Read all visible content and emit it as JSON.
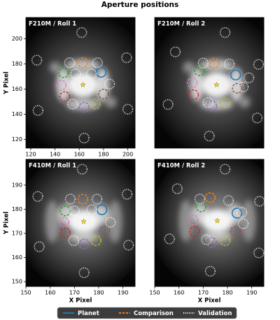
{
  "title": "Aperture positions",
  "chart_data": [
    {
      "type": "aperture-map",
      "panel_title": "F210M / Roll 1",
      "xlim": [
        116,
        206
      ],
      "ylim": [
        113,
        217
      ],
      "xticks": [
        120,
        140,
        160,
        180,
        200
      ],
      "yticks": [
        120,
        140,
        160,
        180,
        200
      ],
      "ylabel": "Y Pixel",
      "aperture_radius": 4,
      "star": {
        "x": 163,
        "y": 163.4
      },
      "series": [
        {
          "name": "Planet",
          "color": "#1f77b4",
          "style": "solid",
          "x": [
            178
          ],
          "y": [
            173.4
          ]
        },
        {
          "name": "Comparison",
          "color": "#ff7f0e",
          "style": "dashed",
          "colors": [
            "#ff7f0e",
            "#2ca02c",
            "#e377c2",
            "#d62728",
            "#9467bd",
            "#bcbd22",
            "#8c564b"
          ],
          "x": [
            163,
            147,
            145,
            148,
            164,
            173,
            180
          ],
          "y": [
            181,
            173,
            163,
            154,
            145.5,
            148,
            156
          ]
        },
        {
          "name": "Validation",
          "color": "#ffffff",
          "style": "dotted",
          "x": [
            162,
            125,
            199,
            126,
            200,
            164,
            152,
            175,
            157,
            170,
            185,
            154.5
          ],
          "y": [
            205,
            183,
            185,
            143,
            144,
            121,
            181,
            181,
            172,
            172,
            164,
            148
          ]
        }
      ]
    },
    {
      "type": "aperture-map",
      "panel_title": "F210M / Roll 2",
      "xlim": [
        116,
        206
      ],
      "ylim": [
        113,
        217
      ],
      "aperture_radius": 4,
      "star": {
        "x": 167,
        "y": 163.4
      },
      "series": [
        {
          "name": "Planet",
          "color": "#1f77b4",
          "style": "solid",
          "x": [
            182.7
          ],
          "y": [
            171.2
          ]
        },
        {
          "name": "Comparison",
          "color": "#ff7f0e",
          "style": "dashed",
          "colors": [
            "#ff7f0e",
            "#2ca02c",
            "#e377c2",
            "#d62728",
            "#9467bd",
            "#bcbd22",
            "#8c564b"
          ],
          "x": [
            165,
            153,
            147,
            148,
            163,
            174,
            184
          ],
          "y": [
            180.7,
            174.5,
            165,
            155.5,
            146.6,
            149,
            160.6
          ]
        },
        {
          "name": "Validation",
          "color": "#ffffff",
          "style": "dotted",
          "x": [
            174,
            133,
            201.6,
            127,
            200.5,
            161,
            156,
            177.5,
            193.6,
            160,
            189
          ],
          "y": [
            205,
            189.6,
            179.6,
            147.7,
            137,
            122.6,
            180.7,
            180,
            169,
            149.4,
            161.7
          ]
        }
      ]
    },
    {
      "type": "aperture-map",
      "panel_title": "F410M / Roll 1",
      "xlim": [
        150,
        195
      ],
      "ylim": [
        148,
        200.7
      ],
      "xticks": [
        150,
        160,
        170,
        180,
        190
      ],
      "yticks": [
        150,
        160,
        170,
        180,
        190
      ],
      "xlabel": "X Pixel",
      "ylabel": "Y Pixel",
      "aperture_radius": 2,
      "star": {
        "x": 173.8,
        "y": 174.9
      },
      "series": [
        {
          "name": "Planet",
          "color": "#1f77b4",
          "style": "solid",
          "x": [
            181.3
          ],
          "y": [
            179.8
          ]
        },
        {
          "name": "Comparison",
          "color": "#ff7f0e",
          "style": "dashed",
          "colors": [
            "#ff7f0e",
            "#2ca02c",
            "#e377c2",
            "#d62728",
            "#9467bd",
            "#bcbd22",
            "#8c564b"
          ],
          "x": [
            173.5,
            166.2,
            165.7,
            166.2,
            174,
            178.9,
            182.5
          ],
          "y": [
            184.2,
            179.3,
            174.6,
            170.3,
            165.6,
            167,
            171.1
          ]
        },
        {
          "name": "Validation",
          "color": "#ffffff",
          "style": "dotted",
          "x": [
            173.2,
            154.9,
            191.7,
            155.5,
            192.3,
            174,
            168.3,
            179.3,
            170,
            177.2,
            184.8,
            169.7
          ],
          "y": [
            196.6,
            185.3,
            186.2,
            164.5,
            165.1,
            153.7,
            184.2,
            184.2,
            179.3,
            179.8,
            174.6,
            167
          ]
        }
      ]
    },
    {
      "type": "aperture-map",
      "panel_title": "F410M / Roll 2",
      "xlim": [
        150,
        195
      ],
      "ylim": [
        148,
        200.7
      ],
      "xticks": [
        150,
        160,
        170,
        180,
        190
      ],
      "xlabel": "X Pixel",
      "aperture_radius": 2,
      "star": {
        "x": 175.8,
        "y": 175.2
      },
      "series": [
        {
          "name": "Planet",
          "color": "#1f77b4",
          "style": "solid",
          "x": [
            183.9
          ],
          "y": [
            178.4
          ]
        },
        {
          "name": "Comparison",
          "color": "#ff7f0e",
          "style": "dashed",
          "colors": [
            "#ff7f0e",
            "#2ca02c",
            "#e377c2",
            "#d62728",
            "#9467bd",
            "#bcbd22",
            "#8c564b"
          ],
          "x": [
            172.9,
            169.1,
            165.9,
            166.5,
            173.5,
            179,
            183.3
          ],
          "y": [
            184.8,
            181,
            175.5,
            170.8,
            166.2,
            167,
            170.8
          ]
        },
        {
          "name": "Validation",
          "color": "#ffffff",
          "style": "dotted",
          "x": [
            179,
            159.3,
            193.2,
            156.1,
            192.9,
            172.9,
            168.6,
            180.4,
            186.5,
            185.9,
            171.3
          ],
          "y": [
            196.6,
            188.5,
            183.3,
            167.7,
            161.9,
            154.3,
            184.2,
            183.6,
            174,
            178.7,
            167.4
          ]
        }
      ]
    }
  ]
}
